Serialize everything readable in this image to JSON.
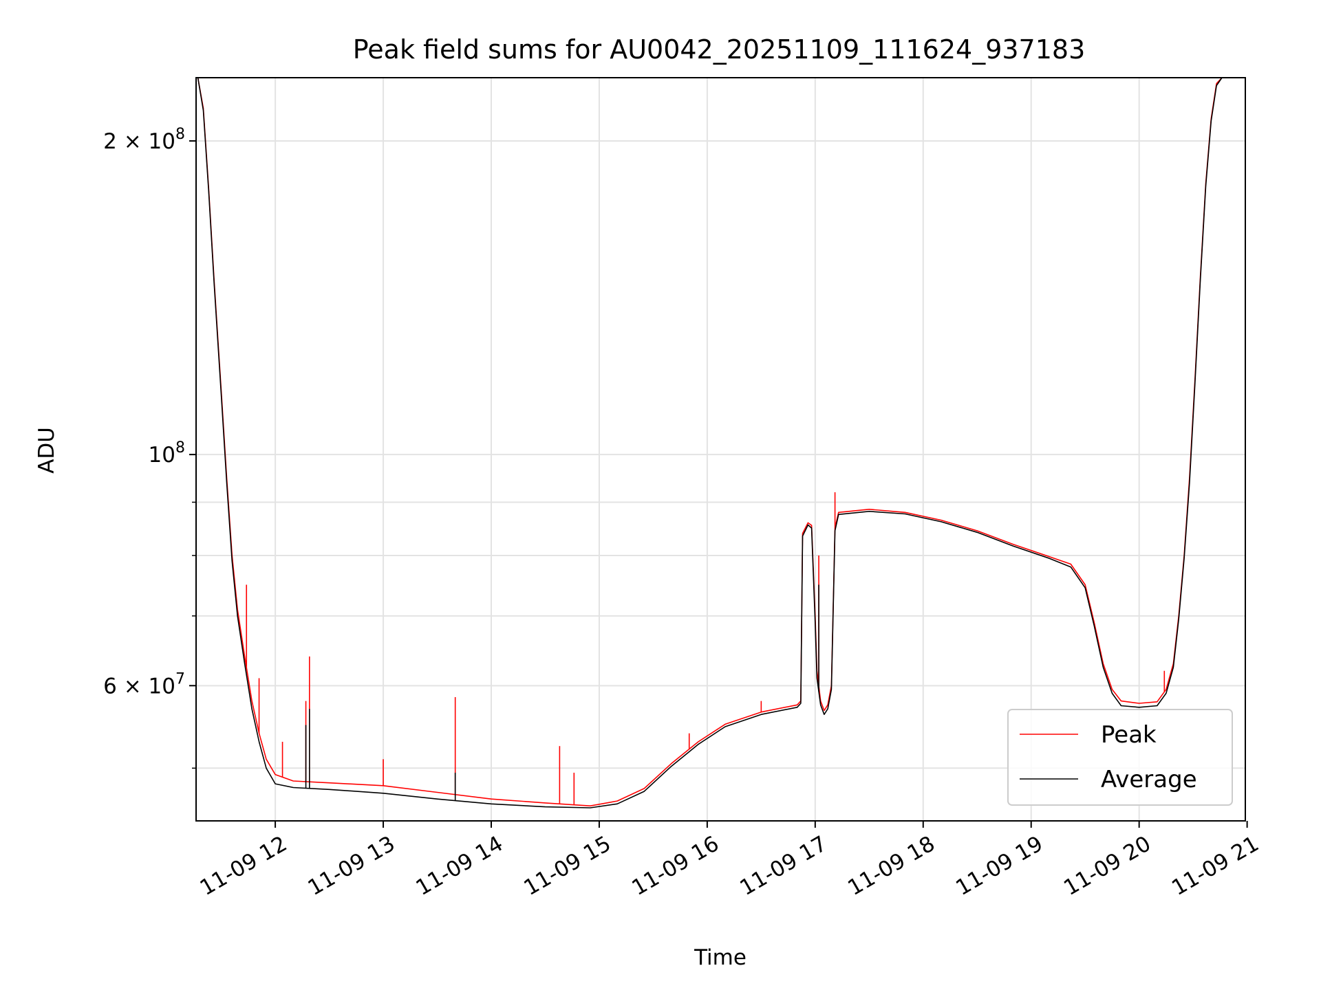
{
  "chart_data": {
    "type": "line",
    "title": "Peak field sums for AU0042_20251109_111624_937183",
    "xlabel": "Time",
    "ylabel": "ADU",
    "yscale": "log",
    "grid": true,
    "legend_position": "lower-right",
    "xlim": [
      "2025-11-09 11:16",
      "2025-11-09 20:59"
    ],
    "ylim": [
      44500000,
      230000000
    ],
    "x_ticks": [
      {
        "t": "2025-11-09 12:00",
        "label": "11-09 12"
      },
      {
        "t": "2025-11-09 13:00",
        "label": "11-09 13"
      },
      {
        "t": "2025-11-09 14:00",
        "label": "11-09 14"
      },
      {
        "t": "2025-11-09 15:00",
        "label": "11-09 15"
      },
      {
        "t": "2025-11-09 16:00",
        "label": "11-09 16"
      },
      {
        "t": "2025-11-09 17:00",
        "label": "11-09 17"
      },
      {
        "t": "2025-11-09 18:00",
        "label": "11-09 18"
      },
      {
        "t": "2025-11-09 19:00",
        "label": "11-09 19"
      },
      {
        "t": "2025-11-09 20:00",
        "label": "11-09 20"
      },
      {
        "t": "2025-11-09 21:00",
        "label": "11-09 21"
      }
    ],
    "y_major_ticks": [
      {
        "v": 200000000,
        "label": "2 × 10^8"
      },
      {
        "v": 100000000,
        "label": "10^8"
      },
      {
        "v": 60000000,
        "label": "6 × 10^7"
      }
    ],
    "y_minor_ticks": [
      50000000,
      70000000,
      80000000,
      90000000
    ],
    "series": [
      {
        "name": "Peak",
        "color": "#ff0000",
        "points": [
          [
            "2025-11-09 11:17",
            230000000
          ],
          [
            "2025-11-09 11:20",
            215000000
          ],
          [
            "2025-11-09 11:23",
            180000000
          ],
          [
            "2025-11-09 11:26",
            147000000
          ],
          [
            "2025-11-09 11:28",
            130000000
          ],
          [
            "2025-11-09 11:30",
            115000000
          ],
          [
            "2025-11-09 11:33",
            95000000
          ],
          [
            "2025-11-09 11:36",
            80000000
          ],
          [
            "2025-11-09 11:39",
            71000000
          ],
          [
            "2025-11-09 11:43",
            64000000
          ],
          [
            "2025-11-09 11:47",
            58000000
          ],
          [
            "2025-11-09 11:51",
            54000000
          ],
          [
            "2025-11-09 11:55",
            51000000
          ],
          [
            "2025-11-09 12:00",
            49300000
          ],
          [
            "2025-11-09 12:10",
            48600000
          ],
          [
            "2025-11-09 12:30",
            48400000
          ],
          [
            "2025-11-09 13:00",
            48100000
          ],
          [
            "2025-11-09 13:30",
            47400000
          ],
          [
            "2025-11-09 14:00",
            46700000
          ],
          [
            "2025-11-09 14:30",
            46300000
          ],
          [
            "2025-11-09 14:55",
            46000000
          ],
          [
            "2025-11-09 15:10",
            46500000
          ],
          [
            "2025-11-09 15:25",
            47800000
          ],
          [
            "2025-11-09 15:40",
            50500000
          ],
          [
            "2025-11-09 15:55",
            53000000
          ],
          [
            "2025-11-09 16:10",
            55100000
          ],
          [
            "2025-11-09 16:30",
            56600000
          ],
          [
            "2025-11-09 16:50",
            57500000
          ],
          [
            "2025-11-09 16:52",
            58000000
          ],
          [
            "2025-11-09 16:53",
            84000000
          ],
          [
            "2025-11-09 16:56",
            86000000
          ],
          [
            "2025-11-09 16:58",
            85500000
          ],
          [
            "2025-11-09 17:00",
            70000000
          ],
          [
            "2025-11-09 17:01",
            62000000
          ],
          [
            "2025-11-09 17:03",
            58000000
          ],
          [
            "2025-11-09 17:05",
            56800000
          ],
          [
            "2025-11-09 17:07",
            57500000
          ],
          [
            "2025-11-09 17:09",
            60000000
          ],
          [
            "2025-11-09 17:11",
            85000000
          ],
          [
            "2025-11-09 17:13",
            88000000
          ],
          [
            "2025-11-09 17:30",
            88600000
          ],
          [
            "2025-11-09 17:50",
            88000000
          ],
          [
            "2025-11-09 18:10",
            86500000
          ],
          [
            "2025-11-09 18:30",
            84500000
          ],
          [
            "2025-11-09 18:50",
            82000000
          ],
          [
            "2025-11-09 19:10",
            79800000
          ],
          [
            "2025-11-09 19:22",
            78500000
          ],
          [
            "2025-11-09 19:30",
            75000000
          ],
          [
            "2025-11-09 19:35",
            69000000
          ],
          [
            "2025-11-09 19:40",
            63000000
          ],
          [
            "2025-11-09 19:45",
            59500000
          ],
          [
            "2025-11-09 19:50",
            58000000
          ],
          [
            "2025-11-09 20:00",
            57700000
          ],
          [
            "2025-11-09 20:10",
            57900000
          ],
          [
            "2025-11-09 20:15",
            59500000
          ],
          [
            "2025-11-09 20:19",
            63000000
          ],
          [
            "2025-11-09 20:22",
            70000000
          ],
          [
            "2025-11-09 20:25",
            80000000
          ],
          [
            "2025-11-09 20:28",
            95000000
          ],
          [
            "2025-11-09 20:31",
            118000000
          ],
          [
            "2025-11-09 20:34",
            148000000
          ],
          [
            "2025-11-09 20:37",
            182000000
          ],
          [
            "2025-11-09 20:40",
            210000000
          ],
          [
            "2025-11-09 20:43",
            227000000
          ],
          [
            "2025-11-09 20:46",
            230000000
          ]
        ],
        "spikes": [
          [
            "2025-11-09 11:44",
            75000000
          ],
          [
            "2025-11-09 11:51",
            61000000
          ],
          [
            "2025-11-09 12:04",
            53000000
          ],
          [
            "2025-11-09 12:17",
            58000000
          ],
          [
            "2025-11-09 12:19",
            64000000
          ],
          [
            "2025-11-09 13:00",
            51000000
          ],
          [
            "2025-11-09 13:40",
            58500000
          ],
          [
            "2025-11-09 14:38",
            52500000
          ],
          [
            "2025-11-09 14:46",
            49500000
          ],
          [
            "2025-11-09 15:50",
            54000000
          ],
          [
            "2025-11-09 16:30",
            58000000
          ],
          [
            "2025-11-09 17:02",
            80000000
          ],
          [
            "2025-11-09 17:11",
            92000000
          ],
          [
            "2025-11-09 20:14",
            62000000
          ]
        ]
      },
      {
        "name": "Average",
        "color": "#000000",
        "points": [
          [
            "2025-11-09 11:17",
            230000000
          ],
          [
            "2025-11-09 11:20",
            214000000
          ],
          [
            "2025-11-09 11:23",
            179000000
          ],
          [
            "2025-11-09 11:26",
            146000000
          ],
          [
            "2025-11-09 11:28",
            129000000
          ],
          [
            "2025-11-09 11:30",
            114000000
          ],
          [
            "2025-11-09 11:33",
            94000000
          ],
          [
            "2025-11-09 11:36",
            79000000
          ],
          [
            "2025-11-09 11:39",
            70000000
          ],
          [
            "2025-11-09 11:43",
            63000000
          ],
          [
            "2025-11-09 11:47",
            57000000
          ],
          [
            "2025-11-09 11:51",
            53000000
          ],
          [
            "2025-11-09 11:55",
            50000000
          ],
          [
            "2025-11-09 12:00",
            48300000
          ],
          [
            "2025-11-09 12:10",
            47900000
          ],
          [
            "2025-11-09 12:30",
            47700000
          ],
          [
            "2025-11-09 13:00",
            47300000
          ],
          [
            "2025-11-09 13:30",
            46700000
          ],
          [
            "2025-11-09 14:00",
            46200000
          ],
          [
            "2025-11-09 14:30",
            45900000
          ],
          [
            "2025-11-09 14:55",
            45800000
          ],
          [
            "2025-11-09 15:10",
            46200000
          ],
          [
            "2025-11-09 15:25",
            47500000
          ],
          [
            "2025-11-09 15:40",
            50200000
          ],
          [
            "2025-11-09 15:55",
            52700000
          ],
          [
            "2025-11-09 16:10",
            54800000
          ],
          [
            "2025-11-09 16:30",
            56300000
          ],
          [
            "2025-11-09 16:50",
            57200000
          ],
          [
            "2025-11-09 16:52",
            57700000
          ],
          [
            "2025-11-09 16:53",
            83500000
          ],
          [
            "2025-11-09 16:56",
            85600000
          ],
          [
            "2025-11-09 16:58",
            85000000
          ],
          [
            "2025-11-09 17:00",
            69000000
          ],
          [
            "2025-11-09 17:01",
            61000000
          ],
          [
            "2025-11-09 17:03",
            57500000
          ],
          [
            "2025-11-09 17:05",
            56300000
          ],
          [
            "2025-11-09 17:07",
            57000000
          ],
          [
            "2025-11-09 17:09",
            59500000
          ],
          [
            "2025-11-09 17:11",
            84500000
          ],
          [
            "2025-11-09 17:13",
            87600000
          ],
          [
            "2025-11-09 17:30",
            88200000
          ],
          [
            "2025-11-09 17:50",
            87700000
          ],
          [
            "2025-11-09 18:10",
            86200000
          ],
          [
            "2025-11-09 18:30",
            84200000
          ],
          [
            "2025-11-09 18:50",
            81700000
          ],
          [
            "2025-11-09 19:10",
            79500000
          ],
          [
            "2025-11-09 19:22",
            78000000
          ],
          [
            "2025-11-09 19:30",
            74500000
          ],
          [
            "2025-11-09 19:35",
            68500000
          ],
          [
            "2025-11-09 19:40",
            62500000
          ],
          [
            "2025-11-09 19:45",
            59000000
          ],
          [
            "2025-11-09 19:50",
            57400000
          ],
          [
            "2025-11-09 20:00",
            57200000
          ],
          [
            "2025-11-09 20:10",
            57400000
          ],
          [
            "2025-11-09 20:15",
            59000000
          ],
          [
            "2025-11-09 20:19",
            62500000
          ],
          [
            "2025-11-09 20:22",
            69500000
          ],
          [
            "2025-11-09 20:25",
            79500000
          ],
          [
            "2025-11-09 20:28",
            94000000
          ],
          [
            "2025-11-09 20:31",
            117000000
          ],
          [
            "2025-11-09 20:34",
            147000000
          ],
          [
            "2025-11-09 20:37",
            181000000
          ],
          [
            "2025-11-09 20:40",
            209000000
          ],
          [
            "2025-11-09 20:43",
            226000000
          ],
          [
            "2025-11-09 20:46",
            230000000
          ]
        ],
        "spikes": [
          [
            "2025-11-09 12:17",
            55000000
          ],
          [
            "2025-11-09 12:19",
            57000000
          ],
          [
            "2025-11-09 13:40",
            49500000
          ],
          [
            "2025-11-09 17:02",
            75000000
          ]
        ]
      }
    ]
  }
}
